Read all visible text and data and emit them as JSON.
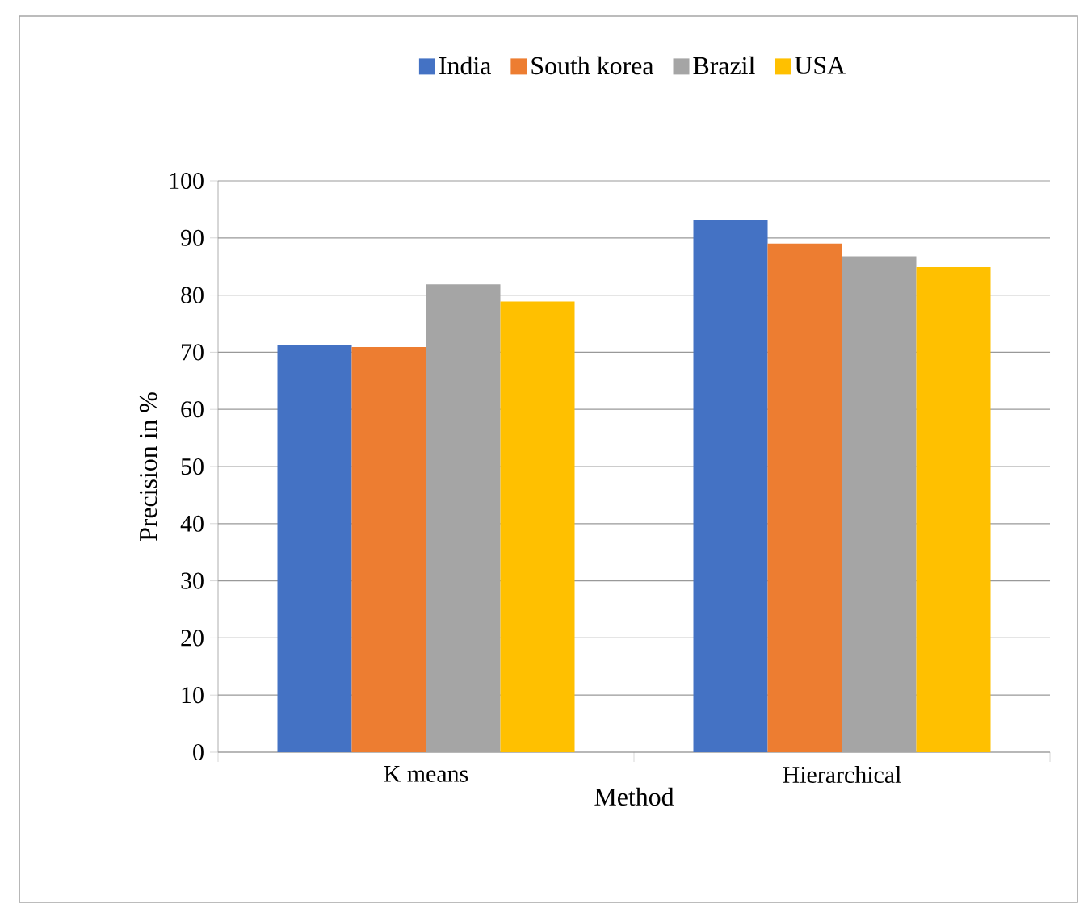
{
  "chart_data": {
    "type": "bar",
    "xlabel": "Method",
    "ylabel": "Precision in %",
    "categories": [
      "K means",
      "Hierarchical"
    ],
    "series": [
      {
        "name": "India",
        "color": "#4472c4",
        "values": [
          71.2,
          93.1
        ]
      },
      {
        "name": "South korea",
        "color": "#ed7d31",
        "values": [
          70.9,
          89.0
        ]
      },
      {
        "name": "Brazil",
        "color": "#a5a5a5",
        "values": [
          81.9,
          86.8
        ]
      },
      {
        "name": "USA",
        "color": "#ffc000",
        "values": [
          78.9,
          84.9
        ]
      }
    ],
    "ylim": [
      0,
      100
    ],
    "yticks": [
      0,
      10,
      20,
      30,
      40,
      50,
      60,
      70,
      80,
      90,
      100
    ],
    "grid": "y",
    "legend": "top"
  }
}
